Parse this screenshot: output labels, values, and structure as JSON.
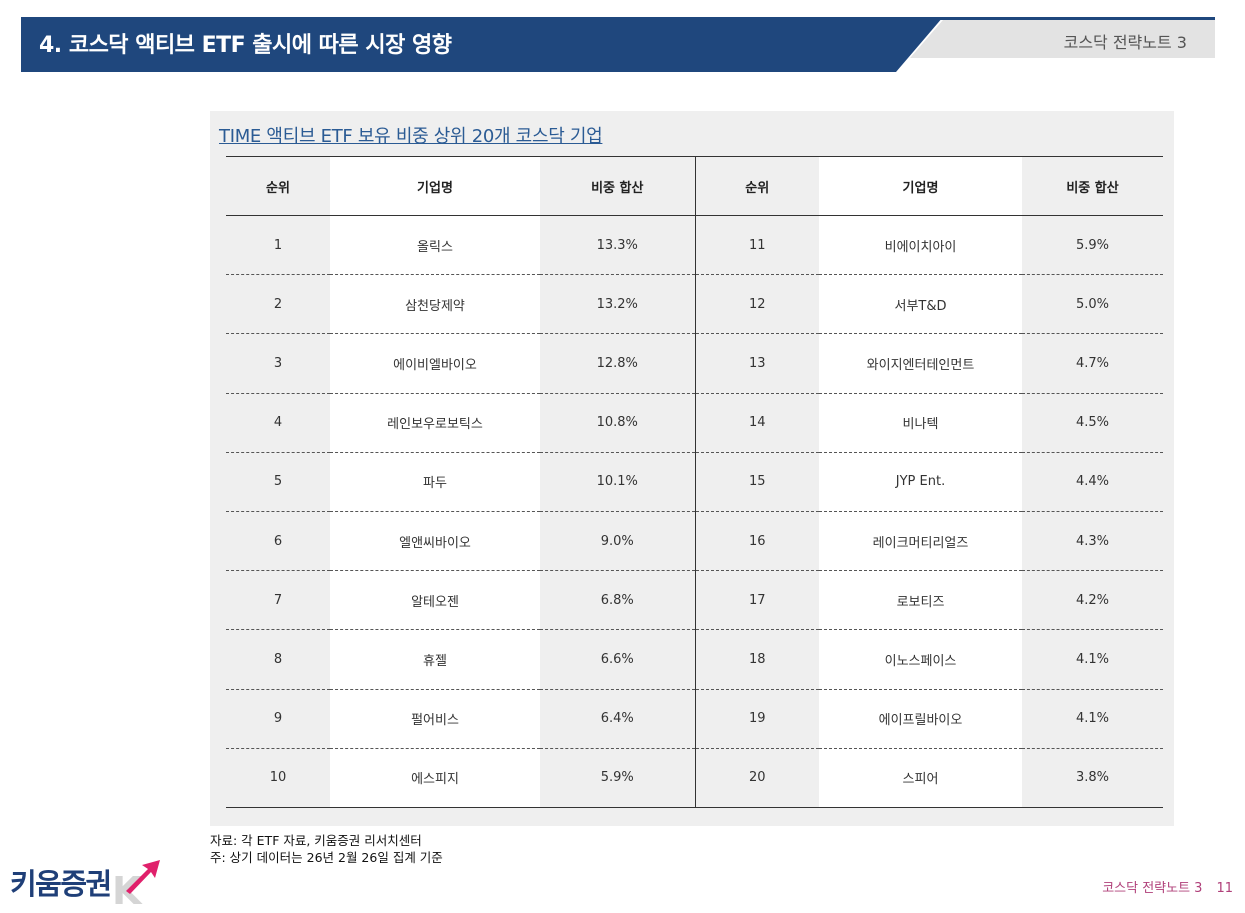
{
  "header": {
    "title": "4. 코스닥 액티브 ETF 출시에 따른 시장 영향",
    "right_label": "코스닥 전략노트 3"
  },
  "panel": {
    "title": "TIME 액티브 ETF 보유 비중 상위 20개 코스닥 기업"
  },
  "table": {
    "headers": [
      "순위",
      "기업명",
      "비중 합산",
      "순위",
      "기업명",
      "비중 합산"
    ],
    "rows": [
      {
        "l_rank": "1",
        "l_name": "올릭스",
        "l_weight": "13.3%",
        "r_rank": "11",
        "r_name": "비에이치아이",
        "r_weight": "5.9%"
      },
      {
        "l_rank": "2",
        "l_name": "삼천당제약",
        "l_weight": "13.2%",
        "r_rank": "12",
        "r_name": "서부T&D",
        "r_weight": "5.0%"
      },
      {
        "l_rank": "3",
        "l_name": "에이비엘바이오",
        "l_weight": "12.8%",
        "r_rank": "13",
        "r_name": "와이지엔터테인먼트",
        "r_weight": "4.7%"
      },
      {
        "l_rank": "4",
        "l_name": "레인보우로보틱스",
        "l_weight": "10.8%",
        "r_rank": "14",
        "r_name": "비나텍",
        "r_weight": "4.5%"
      },
      {
        "l_rank": "5",
        "l_name": "파두",
        "l_weight": "10.1%",
        "r_rank": "15",
        "r_name": "JYP Ent.",
        "r_weight": "4.4%"
      },
      {
        "l_rank": "6",
        "l_name": "엘앤씨바이오",
        "l_weight": "9.0%",
        "r_rank": "16",
        "r_name": "레이크머티리얼즈",
        "r_weight": "4.3%"
      },
      {
        "l_rank": "7",
        "l_name": "알테오젠",
        "l_weight": "6.8%",
        "r_rank": "17",
        "r_name": "로보티즈",
        "r_weight": "4.2%"
      },
      {
        "l_rank": "8",
        "l_name": "휴젤",
        "l_weight": "6.6%",
        "r_rank": "18",
        "r_name": "이노스페이스",
        "r_weight": "4.1%"
      },
      {
        "l_rank": "9",
        "l_name": "펄어비스",
        "l_weight": "6.4%",
        "r_rank": "19",
        "r_name": "에이프릴바이오",
        "r_weight": "4.1%"
      },
      {
        "l_rank": "10",
        "l_name": "에스피지",
        "l_weight": "5.9%",
        "r_rank": "20",
        "r_name": "스피어",
        "r_weight": "3.8%"
      }
    ]
  },
  "footer": {
    "source": "자료: 각 ETF 자료, 키움증권 리서치센터",
    "note": "주: 상기 데이터는 26년 2월 26일 집계 기준",
    "logo_text": "키움증권",
    "doc_label": "코스닥 전략노트 3",
    "page_number": "11"
  },
  "colors": {
    "header_navy": "#1f477d",
    "header_grey": "#e3e3e3",
    "panel_bg": "#efefef",
    "title_blue": "#2b5b94",
    "logo_navy": "#1f3f78",
    "logo_pink": "#e0206b",
    "footer_pink": "#b0407a"
  },
  "icons": {
    "logo_arrow": "logo-arrow-icon"
  }
}
